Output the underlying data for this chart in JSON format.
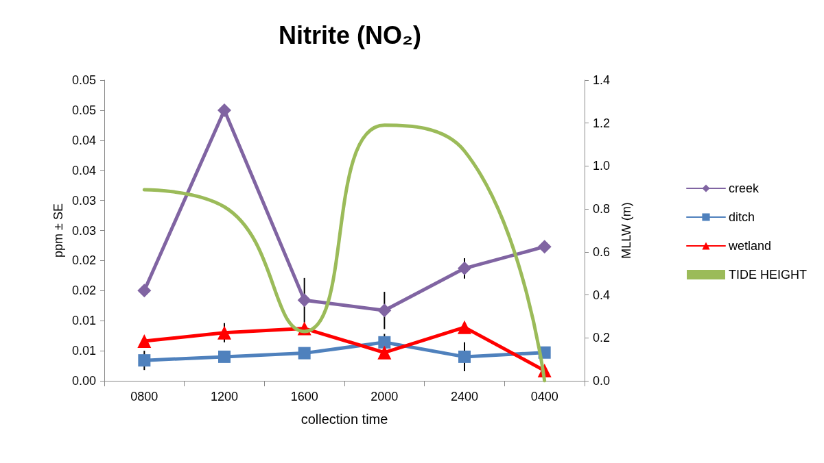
{
  "chart_data": {
    "type": "line",
    "title": "Nitrite (NO₂)",
    "xlabel": "collection time",
    "ylabel": "ppm ± SE",
    "y2label": "MLLW (m)",
    "categories": [
      "0800",
      "1200",
      "1600",
      "2000",
      "2400",
      "0400"
    ],
    "ylim": [
      0,
      0.05
    ],
    "yticks": [
      {
        "value": 0,
        "label": "0.00"
      },
      {
        "value": 0.005,
        "label": "0.01"
      },
      {
        "value": 0.01,
        "label": "0.01"
      },
      {
        "value": 0.015,
        "label": "0.02"
      },
      {
        "value": 0.02,
        "label": "0.02"
      },
      {
        "value": 0.025,
        "label": "0.03"
      },
      {
        "value": 0.03,
        "label": "0.03"
      },
      {
        "value": 0.035,
        "label": "0.04"
      },
      {
        "value": 0.04,
        "label": "0.04"
      },
      {
        "value": 0.045,
        "label": "0.05"
      },
      {
        "value": 0.05,
        "label": "0.05"
      }
    ],
    "y2lim": [
      0,
      1.4
    ],
    "y2ticks": [
      {
        "value": 0,
        "label": "0.0"
      },
      {
        "value": 0.2,
        "label": "0.2"
      },
      {
        "value": 0.4,
        "label": "0.4"
      },
      {
        "value": 0.6,
        "label": "0.6"
      },
      {
        "value": 0.8,
        "label": "0.8"
      },
      {
        "value": 1,
        "label": "1.0"
      },
      {
        "value": 1.2,
        "label": "1.2"
      },
      {
        "value": 1.4,
        "label": "1.4"
      }
    ],
    "grid": false,
    "legend": "right",
    "series": [
      {
        "name": "creek",
        "color": "#8064a2",
        "marker": "diamond",
        "values": [
          0.015,
          0.045,
          0.0134,
          0.0117,
          0.0187,
          0.0223
        ],
        "errors": [
          null,
          null,
          0.0037,
          0.0031,
          0.0017,
          null
        ]
      },
      {
        "name": "ditch",
        "color": "#4f81bd",
        "marker": "square",
        "values": [
          0.0034,
          0.004,
          0.0046,
          0.0064,
          0.004,
          0.0047
        ],
        "errors": [
          0.0016,
          null,
          null,
          0.0014,
          0.0024,
          null
        ]
      },
      {
        "name": "wetland",
        "color": "#ff0000",
        "marker": "triangle",
        "values": [
          0.0066,
          0.008,
          0.0087,
          0.0047,
          0.0089,
          0.0017
        ],
        "errors": [
          null,
          0.0016,
          null,
          null,
          null,
          null
        ]
      },
      {
        "name": "TIDE HEIGHT",
        "color": "#9bbb59",
        "marker": "none",
        "axis": "y2",
        "values": [
          0.89,
          0.81,
          0.23,
          1.19,
          1.07,
          0.0
        ]
      }
    ]
  }
}
